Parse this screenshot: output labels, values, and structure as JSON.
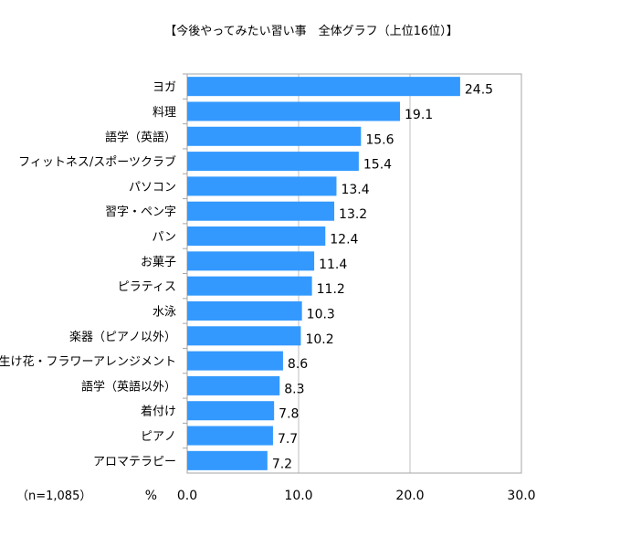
{
  "chart_data": {
    "type": "bar",
    "orientation": "horizontal",
    "title": "【今後やってみたい習い事　全体グラフ（上位16位）】",
    "categories": [
      "ヨガ",
      "料理",
      "語学（英語）",
      "フィットネス/スポーツクラブ",
      "パソコン",
      "習字・ペン字",
      "パン",
      "お菓子",
      "ピラティス",
      "水泳",
      "楽器（ピアノ以外）",
      "生け花・フラワーアレンジメント",
      "語学（英語以外）",
      "着付け",
      "ピアノ",
      "アロマテラピー"
    ],
    "values": [
      24.5,
      19.1,
      15.6,
      15.4,
      13.4,
      13.2,
      12.4,
      11.4,
      11.2,
      10.3,
      10.2,
      8.6,
      8.3,
      7.8,
      7.7,
      7.2
    ],
    "value_labels": [
      "24.5",
      "19.1",
      "15.6",
      "15.4",
      "13.4",
      "13.2",
      "12.4",
      "11.4",
      "11.2",
      "10.3",
      "10.2",
      "8.6",
      "8.3",
      "7.8",
      "7.7",
      "7.2"
    ],
    "xlim": [
      0,
      30
    ],
    "ticks": [
      0,
      10,
      20,
      30
    ],
    "tick_labels": [
      "0.0",
      "10.0",
      "20.0",
      "30.0"
    ],
    "unit": "%",
    "sample_note": "（n=1,085）",
    "grid": true,
    "bar_color": "#3399FF",
    "grid_color": "#bfbfbf"
  }
}
